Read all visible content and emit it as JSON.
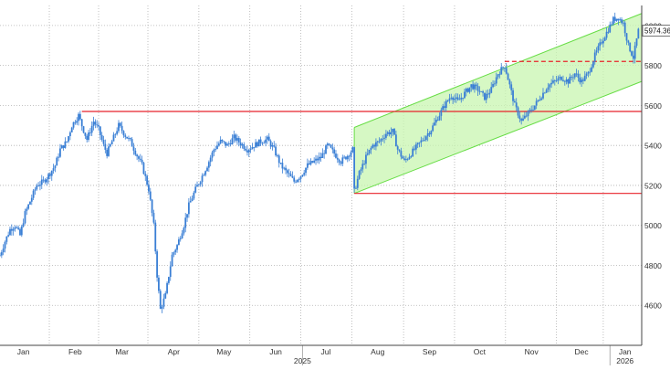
{
  "chart_data": {
    "type": "line",
    "style": "candlestick",
    "title": "",
    "xlabel": "",
    "ylabel": "",
    "ylim": [
      4400,
      6100
    ],
    "grid": true,
    "y_ticks": [
      4600,
      4800,
      5000,
      5200,
      5400,
      5600,
      5800,
      6000
    ],
    "x_axis": {
      "range": [
        "2025-01-01",
        "2026-01-20"
      ],
      "ticks": [
        {
          "label": "Jan",
          "date": "2025-01-15"
        },
        {
          "label": "Feb",
          "date": "2025-02-15"
        },
        {
          "label": "Mar",
          "date": "2025-03-15"
        },
        {
          "label": "Apr",
          "date": "2025-04-15"
        },
        {
          "label": "May",
          "date": "2025-05-15"
        },
        {
          "label": "Jun",
          "date": "2025-06-15"
        },
        {
          "label": "Jul",
          "date": "2025-07-15"
        },
        {
          "label": "Aug",
          "date": "2025-08-15"
        },
        {
          "label": "Sep",
          "date": "2025-09-15"
        },
        {
          "label": "Oct",
          "date": "2025-10-15"
        },
        {
          "label": "Nov",
          "date": "2025-11-15"
        },
        {
          "label": "Dec",
          "date": "2025-12-15"
        },
        {
          "label": "Jan",
          "date": "2026-01-10"
        }
      ],
      "year_labels": [
        {
          "label": "2025",
          "date": "2025-07-01"
        },
        {
          "label": "2026",
          "date": "2026-01-10"
        }
      ],
      "year_dividers": [
        "2025-07-01",
        "2026-01-01"
      ]
    },
    "last_value_label": "5974.36",
    "colors": {
      "candle": "#3a7fd5",
      "line_red": "#e8222a",
      "channel_fill": "#c8f5b0",
      "channel_edge": "#66dd44",
      "grid": "#b0b0b0",
      "axis_text": "#333333"
    },
    "series": [
      {
        "points": [
          [
            "2025-01-01",
            4850
          ],
          [
            "2025-01-04",
            4920
          ],
          [
            "2025-01-07",
            4980
          ],
          [
            "2025-01-10",
            5000
          ],
          [
            "2025-01-13",
            4950
          ],
          [
            "2025-01-16",
            5060
          ],
          [
            "2025-01-20",
            5140
          ],
          [
            "2025-01-23",
            5200
          ],
          [
            "2025-01-27",
            5220
          ],
          [
            "2025-01-30",
            5250
          ],
          [
            "2025-02-03",
            5300
          ],
          [
            "2025-02-06",
            5380
          ],
          [
            "2025-02-10",
            5420
          ],
          [
            "2025-02-13",
            5500
          ],
          [
            "2025-02-17",
            5550
          ],
          [
            "2025-02-19",
            5500
          ],
          [
            "2025-02-22",
            5430
          ],
          [
            "2025-02-26",
            5520
          ],
          [
            "2025-03-01",
            5480
          ],
          [
            "2025-03-04",
            5400
          ],
          [
            "2025-03-06",
            5360
          ],
          [
            "2025-03-10",
            5440
          ],
          [
            "2025-03-13",
            5500
          ],
          [
            "2025-03-17",
            5450
          ],
          [
            "2025-03-20",
            5420
          ],
          [
            "2025-03-24",
            5350
          ],
          [
            "2025-03-27",
            5300
          ],
          [
            "2025-03-31",
            5180
          ],
          [
            "2025-04-03",
            5000
          ],
          [
            "2025-04-05",
            4750
          ],
          [
            "2025-04-07",
            4580
          ],
          [
            "2025-04-10",
            4650
          ],
          [
            "2025-04-14",
            4850
          ],
          [
            "2025-04-17",
            4900
          ],
          [
            "2025-04-21",
            5000
          ],
          [
            "2025-04-24",
            5100
          ],
          [
            "2025-04-28",
            5180
          ],
          [
            "2025-05-01",
            5230
          ],
          [
            "2025-05-05",
            5300
          ],
          [
            "2025-05-09",
            5380
          ],
          [
            "2025-05-13",
            5420
          ],
          [
            "2025-05-17",
            5400
          ],
          [
            "2025-05-21",
            5440
          ],
          [
            "2025-05-25",
            5410
          ],
          [
            "2025-05-29",
            5380
          ],
          [
            "2025-06-02",
            5400
          ],
          [
            "2025-06-06",
            5420
          ],
          [
            "2025-06-10",
            5430
          ],
          [
            "2025-06-14",
            5380
          ],
          [
            "2025-06-18",
            5300
          ],
          [
            "2025-06-22",
            5260
          ],
          [
            "2025-06-26",
            5220
          ],
          [
            "2025-06-30",
            5250
          ],
          [
            "2025-07-04",
            5300
          ],
          [
            "2025-07-08",
            5320
          ],
          [
            "2025-07-12",
            5340
          ],
          [
            "2025-07-16",
            5400
          ],
          [
            "2025-07-20",
            5360
          ],
          [
            "2025-07-24",
            5320
          ],
          [
            "2025-07-28",
            5350
          ],
          [
            "2025-07-31",
            5380
          ],
          [
            "2025-08-01",
            5170
          ],
          [
            "2025-08-04",
            5260
          ],
          [
            "2025-08-08",
            5340
          ],
          [
            "2025-08-12",
            5400
          ],
          [
            "2025-08-16",
            5420
          ],
          [
            "2025-08-20",
            5460
          ],
          [
            "2025-08-24",
            5470
          ],
          [
            "2025-08-27",
            5380
          ],
          [
            "2025-08-31",
            5320
          ],
          [
            "2025-09-04",
            5360
          ],
          [
            "2025-09-08",
            5400
          ],
          [
            "2025-09-12",
            5440
          ],
          [
            "2025-09-16",
            5480
          ],
          [
            "2025-09-20",
            5540
          ],
          [
            "2025-09-24",
            5600
          ],
          [
            "2025-09-28",
            5650
          ],
          [
            "2025-10-02",
            5620
          ],
          [
            "2025-10-06",
            5660
          ],
          [
            "2025-10-10",
            5700
          ],
          [
            "2025-10-14",
            5680
          ],
          [
            "2025-10-18",
            5640
          ],
          [
            "2025-10-22",
            5680
          ],
          [
            "2025-10-26",
            5760
          ],
          [
            "2025-10-30",
            5800
          ],
          [
            "2025-11-02",
            5700
          ],
          [
            "2025-11-05",
            5600
          ],
          [
            "2025-11-09",
            5520
          ],
          [
            "2025-11-13",
            5560
          ],
          [
            "2025-11-17",
            5600
          ],
          [
            "2025-11-21",
            5650
          ],
          [
            "2025-11-25",
            5700
          ],
          [
            "2025-11-29",
            5720
          ],
          [
            "2025-12-03",
            5740
          ],
          [
            "2025-12-07",
            5720
          ],
          [
            "2025-12-11",
            5760
          ],
          [
            "2025-12-15",
            5720
          ],
          [
            "2025-12-19",
            5760
          ],
          [
            "2025-12-23",
            5850
          ],
          [
            "2025-12-27",
            5920
          ],
          [
            "2025-12-31",
            5980
          ],
          [
            "2026-01-03",
            6030
          ],
          [
            "2026-01-06",
            6040
          ],
          [
            "2026-01-09",
            6010
          ],
          [
            "2026-01-12",
            5900
          ],
          [
            "2026-01-15",
            5840
          ],
          [
            "2026-01-18",
            5974
          ]
        ]
      }
    ],
    "annotations": {
      "resistance_line": {
        "y": 5570,
        "from": "2025-02-19",
        "to": "2026-01-20"
      },
      "support_line": {
        "y": 5160,
        "from": "2025-08-01",
        "to": "2026-01-20"
      },
      "dashed_line": {
        "y": 5820,
        "from": "2025-10-30",
        "to": "2026-01-20"
      },
      "channel": {
        "start": "2025-08-01",
        "end": "2026-01-20",
        "lower_start": 5160,
        "lower_end": 5720,
        "upper_start": 5490,
        "upper_end": 6060
      }
    }
  }
}
